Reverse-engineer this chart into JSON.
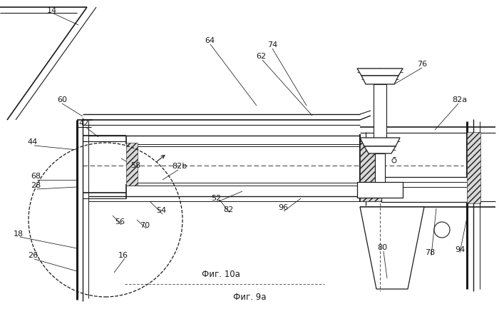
{
  "bg_color": "#ffffff",
  "line_color": "#1a1a1a",
  "fig_label_10a": "Фиг. 10а",
  "fig_label_9a": "Фиг. 9а",
  "figsize": [
    7.0,
    4.33
  ],
  "dpi": 100
}
